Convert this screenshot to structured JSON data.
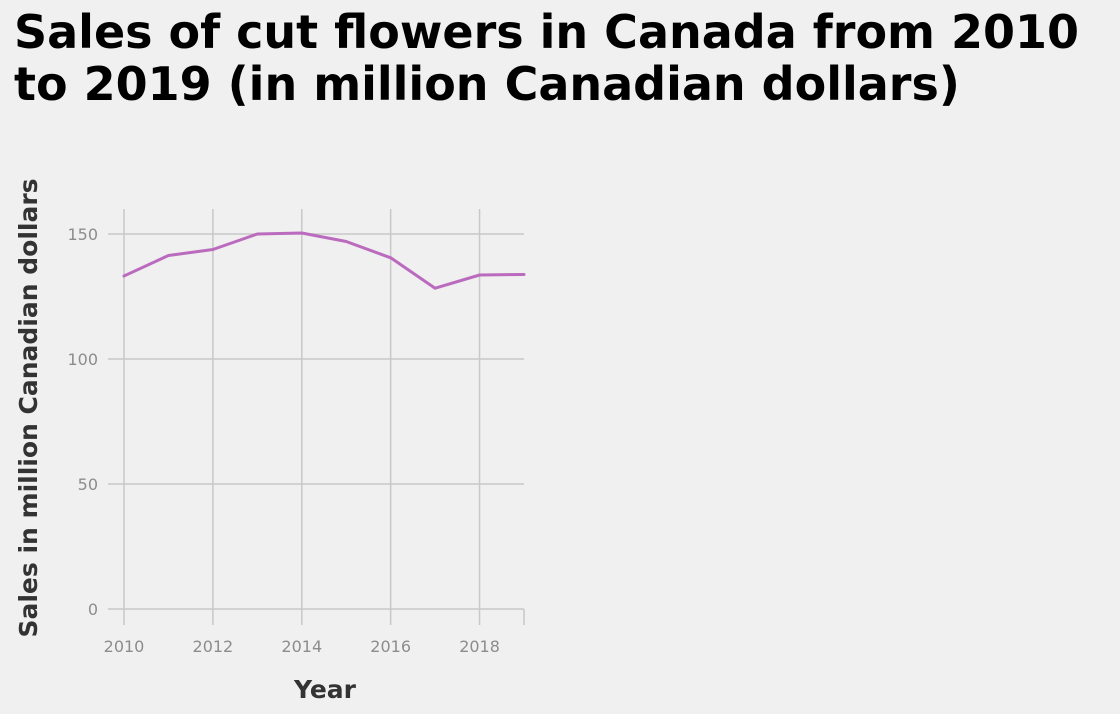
{
  "chart_data": {
    "type": "line",
    "title": "Sales of cut flowers in Canada from 2010 to 2019 (in million Canadian dollars)",
    "xlabel": "Year",
    "ylabel": "Sales in million Canadian dollars",
    "x": [
      2010,
      2011,
      2012,
      2013,
      2014,
      2015,
      2016,
      2017,
      2018,
      2019
    ],
    "series": [
      {
        "values": [
          133.2,
          141.4,
          143.8,
          150.0,
          150.4,
          147.0,
          140.5,
          128.3,
          133.6,
          133.8
        ]
      }
    ],
    "xlim": [
      2010,
      2019
    ],
    "ylim": [
      0,
      160
    ],
    "xticks": [
      "2010",
      "2012",
      "2014",
      "2016",
      "2018"
    ],
    "yticks": [
      "0",
      "50",
      "100",
      "150"
    ],
    "grid": true,
    "line_color": "#bb6bbe"
  }
}
